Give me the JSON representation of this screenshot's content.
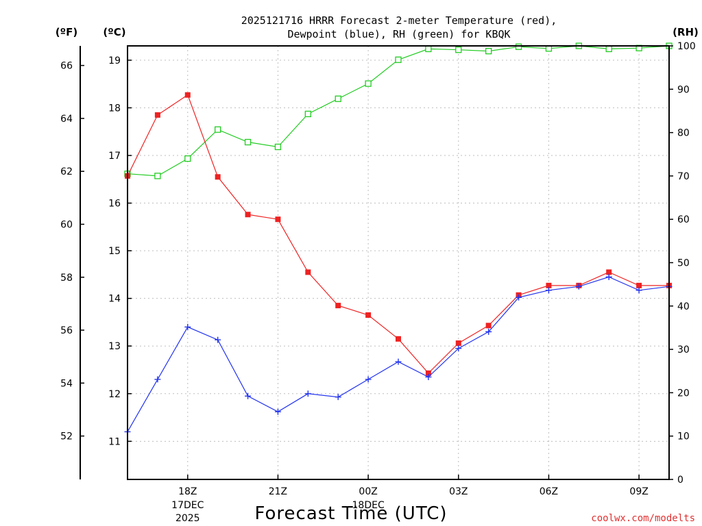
{
  "colors": {
    "temperature": "#ee2222",
    "dewpoint": "#2233ee",
    "rh": "#22cc22",
    "grid": "#bdbdbd",
    "credit": "#e03030"
  },
  "chart_data": {
    "type": "line",
    "title_line1": "2025121716 HRRR Forecast 2-meter Temperature (red),",
    "title_line2": "Dewpoint (blue), RH (green) for KBQK",
    "xlabel": "Forecast Time (UTC)",
    "credit": "coolwx.com/modelts",
    "hours": [
      16,
      17,
      18,
      19,
      20,
      21,
      22,
      23,
      24,
      25,
      26,
      27,
      28,
      29,
      30,
      31,
      32,
      33,
      34
    ],
    "x_ticks": [
      {
        "hour": 18,
        "label": "18Z",
        "date": "17DEC",
        "year": "2025"
      },
      {
        "hour": 21,
        "label": "21Z",
        "date": "",
        "year": ""
      },
      {
        "hour": 24,
        "label": "00Z",
        "date": "18DEC",
        "year": ""
      },
      {
        "hour": 27,
        "label": "03Z",
        "date": "",
        "year": ""
      },
      {
        "hour": 30,
        "label": "06Z",
        "date": "",
        "year": ""
      },
      {
        "hour": 33,
        "label": "09Z",
        "date": "",
        "year": ""
      }
    ],
    "xlim": [
      16,
      34
    ],
    "left_axis_c": {
      "label": "(ºC)",
      "range": [
        10.2,
        19.3
      ],
      "ticks": [
        "11",
        "12",
        "13",
        "14",
        "15",
        "16",
        "17",
        "18",
        "19"
      ]
    },
    "left_axis_f": {
      "label": "(ºF)",
      "range": [
        50.36,
        66.74
      ],
      "ticks": [
        "52",
        "54",
        "56",
        "58",
        "60",
        "62",
        "64",
        "66"
      ]
    },
    "right_axis_rh": {
      "label": "(RH)",
      "range": [
        0,
        100
      ],
      "ticks": [
        "0",
        "10",
        "20",
        "30",
        "40",
        "50",
        "60",
        "70",
        "80",
        "90",
        "100"
      ]
    },
    "series": [
      {
        "name": "Temperature",
        "axis": "C",
        "color": "#ee2222",
        "marker": "filled-square",
        "values": [
          16.57,
          17.85,
          18.27,
          16.55,
          15.76,
          15.66,
          14.55,
          13.85,
          13.65,
          13.15,
          12.43,
          13.06,
          13.43,
          14.07,
          14.27,
          14.27,
          14.55,
          14.27,
          14.27
        ]
      },
      {
        "name": "Dewpoint",
        "axis": "C",
        "color": "#2233ee",
        "marker": "plus",
        "values": [
          11.2,
          12.3,
          13.4,
          13.13,
          11.95,
          11.62,
          12.0,
          11.93,
          12.3,
          12.67,
          12.35,
          12.95,
          13.3,
          14.02,
          14.17,
          14.25,
          14.45,
          14.17,
          14.25
        ]
      },
      {
        "name": "RH",
        "axis": "RH",
        "color": "#22cc22",
        "marker": "open-square",
        "values": [
          70.5,
          70.0,
          74.0,
          80.7,
          77.8,
          76.7,
          84.3,
          87.8,
          91.3,
          96.8,
          99.3,
          99.1,
          98.8,
          99.8,
          99.4,
          100.0,
          99.3,
          99.5,
          100.0
        ]
      }
    ]
  }
}
